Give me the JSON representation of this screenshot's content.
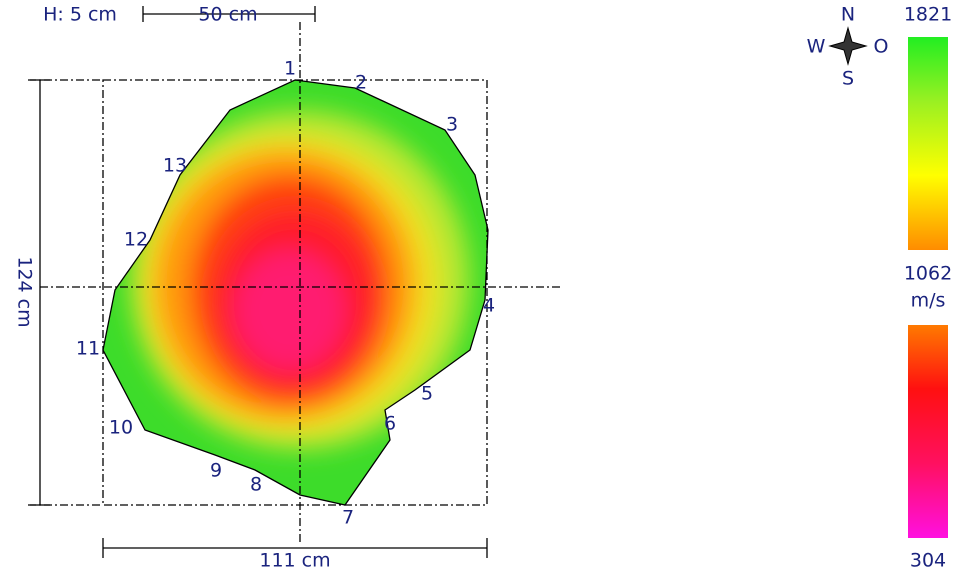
{
  "header": {
    "height": "H: 5 cm",
    "scale_bar": "50 cm"
  },
  "dimensions": {
    "height": "124 cm",
    "width": "111 cm"
  },
  "points": [
    "1",
    "2",
    "3",
    "4",
    "5",
    "6",
    "7",
    "8",
    "9",
    "10",
    "11",
    "12",
    "13"
  ],
  "compass": {
    "north": "N",
    "west": "W",
    "east": "O",
    "south": "S"
  },
  "legend": {
    "max": "1821",
    "mid": "1062",
    "unit": "m/s",
    "min": "304"
  }
}
